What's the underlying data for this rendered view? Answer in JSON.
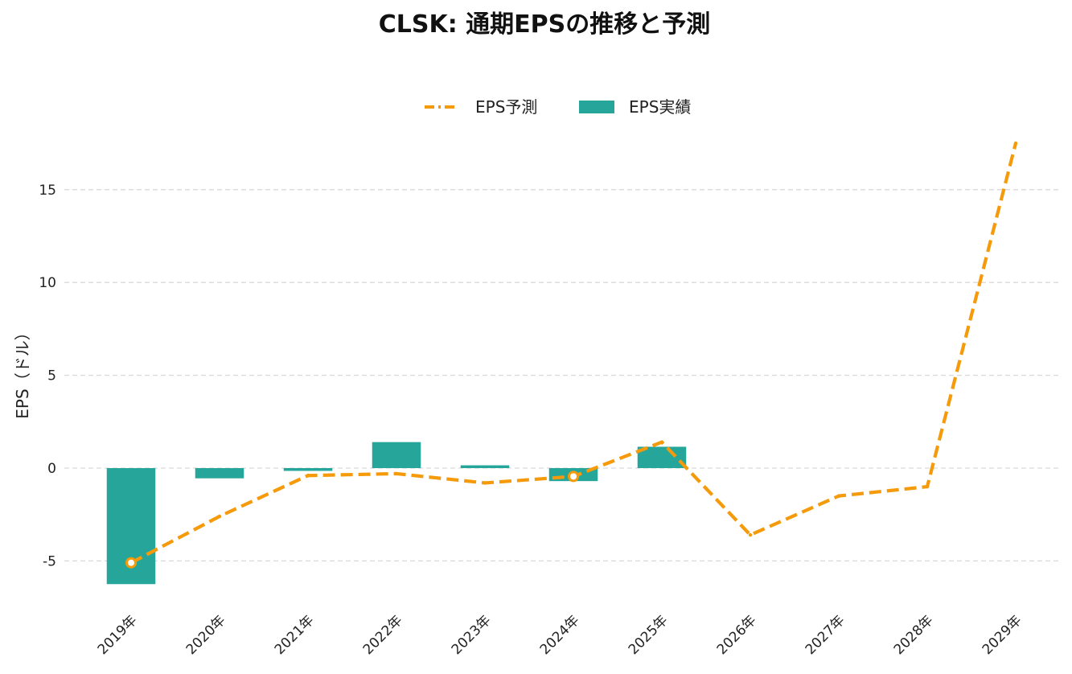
{
  "chart_data": {
    "type": "bar",
    "title": "CLSK: 通期EPSの推移と予測",
    "xlabel": "",
    "ylabel": "EPS（ドル）",
    "categories": [
      "2019年",
      "2020年",
      "2021年",
      "2022年",
      "2023年",
      "2024年",
      "2025年",
      "2026年",
      "2027年",
      "2028年",
      "2029年"
    ],
    "ylim": [
      -7.0,
      18.5
    ],
    "yticks": [
      -5,
      0,
      5,
      10,
      15
    ],
    "ytick_labels": [
      "-5",
      "0",
      "5",
      "10",
      "15"
    ],
    "grid": true,
    "legend_position": "top-center",
    "series": [
      {
        "name": "EPS予測",
        "kind": "line",
        "style": "dashed",
        "color": "#f59b0b",
        "values": [
          -5.1,
          -2.6,
          -0.4,
          -0.3,
          -0.8,
          -0.45,
          1.4,
          -3.6,
          -1.5,
          -1.0,
          17.5
        ],
        "highlighted_markers": [
          0,
          5
        ]
      },
      {
        "name": "EPS実績",
        "kind": "bar",
        "color": "#26a69a",
        "values": [
          -6.25,
          -0.55,
          -0.15,
          1.4,
          0.15,
          -0.7,
          1.15,
          null,
          null,
          null,
          null
        ]
      }
    ]
  }
}
